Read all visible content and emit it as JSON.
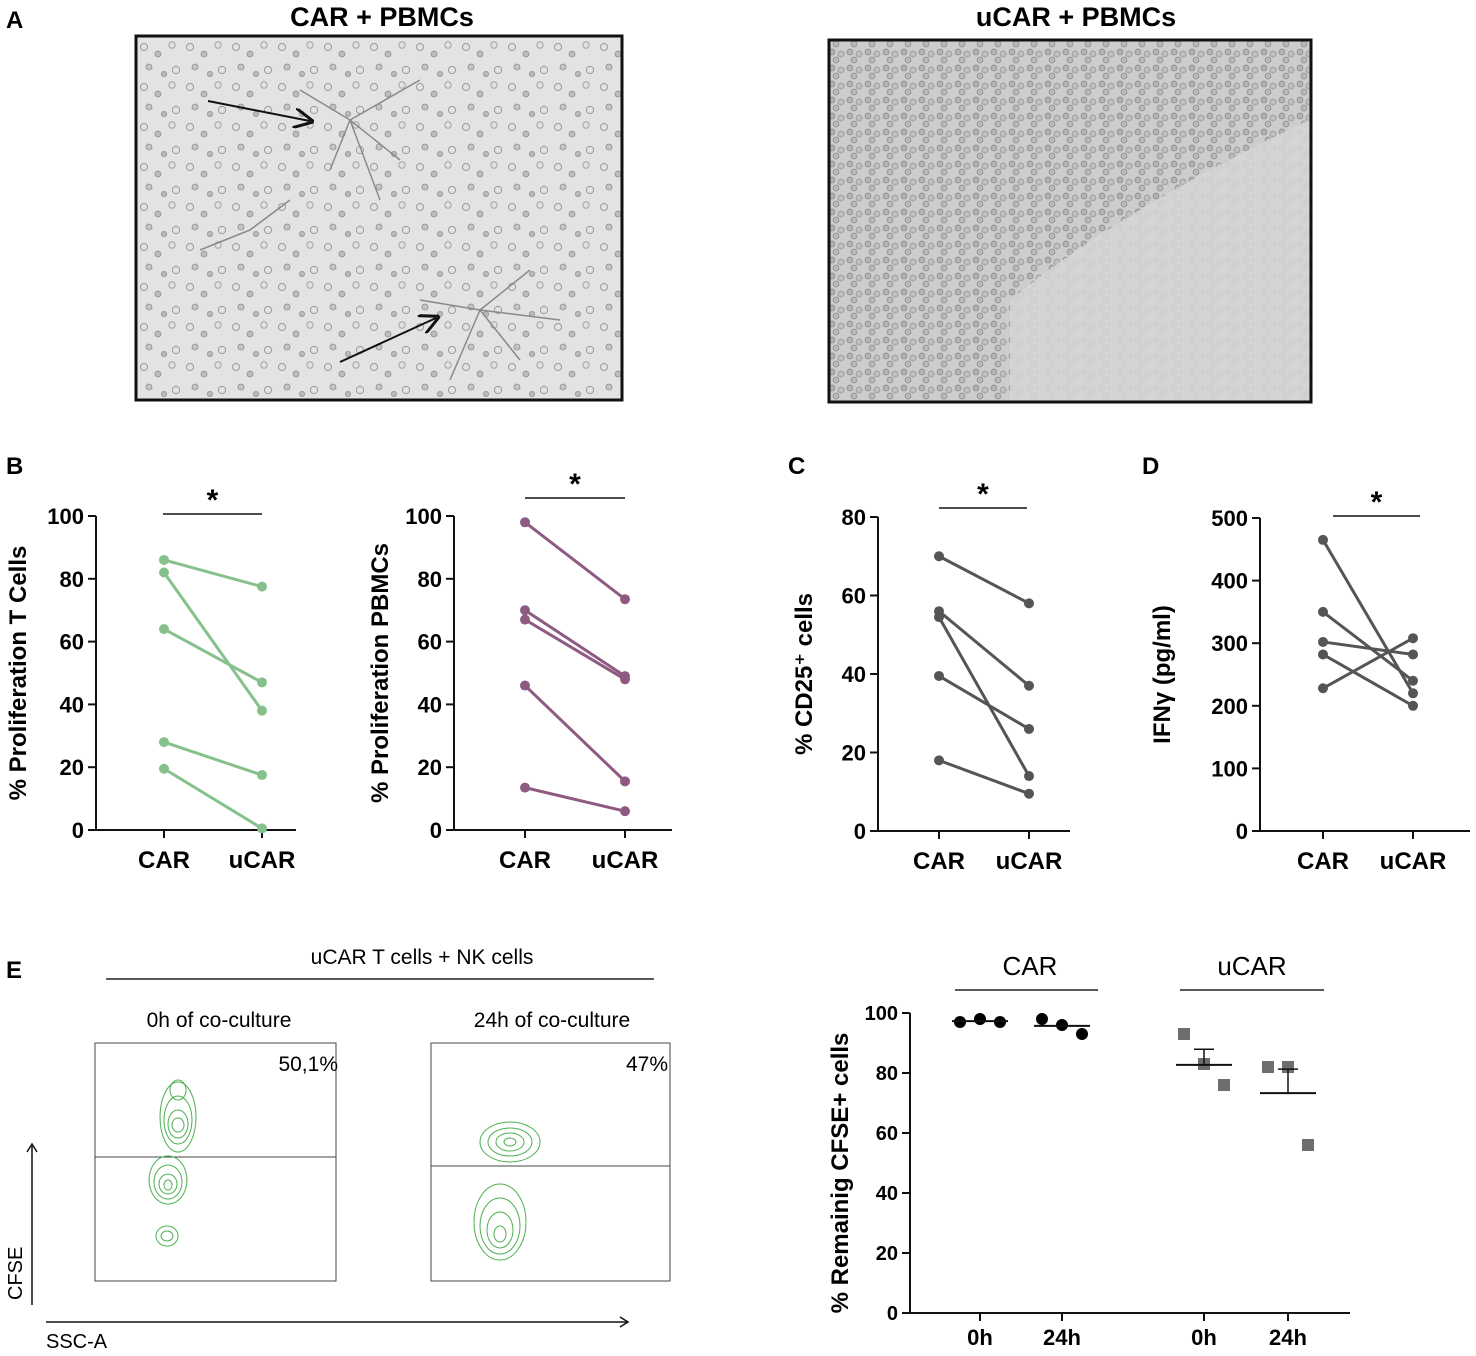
{
  "panel_letters": {
    "a": "A",
    "b": "B",
    "c": "C",
    "d": "D",
    "e": "E"
  },
  "panel_a": {
    "left_title": "CAR + PBMCs",
    "right_title": "uCAR + PBMCs"
  },
  "panel_e": {
    "header": "uCAR T cells + NK cells",
    "plot1_title": "0h of co-culture",
    "plot1_pct": "50,1%",
    "plot2_title": "24h of co-culture",
    "plot2_pct": "47%",
    "y_axis": "CFSE",
    "x_axis": "SSC-A",
    "group_car": "CAR",
    "group_ucar": "uCAR"
  },
  "colors": {
    "green": "#86c08c",
    "purple": "#8f5a82",
    "gray": "#555555",
    "contour": "#4caf50",
    "black": "#000000",
    "square": "#6e6e6e"
  },
  "chart_data": [
    {
      "id": "b1",
      "type": "line",
      "color": "green",
      "categories": [
        "CAR",
        "uCAR"
      ],
      "ylabel": "% Proliferation T Cells",
      "ylim": [
        0,
        100
      ],
      "yticks": [
        0,
        20,
        40,
        60,
        80,
        100
      ],
      "significance": "*",
      "series": [
        {
          "values": [
            86,
            77.5
          ]
        },
        {
          "values": [
            82,
            38
          ]
        },
        {
          "values": [
            64,
            47
          ]
        },
        {
          "values": [
            28,
            17.5
          ]
        },
        {
          "values": [
            19.5,
            0.5
          ]
        }
      ]
    },
    {
      "id": "b2",
      "type": "line",
      "color": "purple",
      "categories": [
        "CAR",
        "uCAR"
      ],
      "ylabel": "% Proliferation PBMCs",
      "ylim": [
        0,
        100
      ],
      "yticks": [
        0,
        20,
        40,
        60,
        80,
        100
      ],
      "significance": "*",
      "series": [
        {
          "values": [
            98,
            73.5
          ]
        },
        {
          "values": [
            70,
            49
          ]
        },
        {
          "values": [
            67,
            48
          ]
        },
        {
          "values": [
            46,
            15.5
          ]
        },
        {
          "values": [
            13.5,
            6
          ]
        }
      ]
    },
    {
      "id": "c",
      "type": "line",
      "color": "gray",
      "categories": [
        "CAR",
        "uCAR"
      ],
      "ylabel": "% CD25⁺ cells",
      "ylim": [
        0,
        80
      ],
      "yticks": [
        0,
        20,
        40,
        60,
        80
      ],
      "significance": "*",
      "series": [
        {
          "values": [
            70,
            58
          ]
        },
        {
          "values": [
            56,
            37
          ]
        },
        {
          "values": [
            54.5,
            14
          ]
        },
        {
          "values": [
            39.5,
            26
          ]
        },
        {
          "values": [
            18,
            9.5
          ]
        }
      ]
    },
    {
      "id": "d",
      "type": "line",
      "color": "gray",
      "categories": [
        "CAR",
        "uCAR"
      ],
      "ylabel": "IFNγ (pg/ml)",
      "ylim": [
        0,
        500
      ],
      "yticks": [
        0,
        100,
        200,
        300,
        400,
        500
      ],
      "significance": "*",
      "series": [
        {
          "values": [
            465,
            220
          ]
        },
        {
          "values": [
            350,
            240
          ]
        },
        {
          "values": [
            302,
            282
          ]
        },
        {
          "values": [
            282,
            200
          ]
        },
        {
          "values": [
            228,
            308
          ]
        }
      ]
    },
    {
      "id": "e",
      "type": "scatter",
      "categories": [
        "0h",
        "24h",
        "0h",
        "24h"
      ],
      "ylabel": "% Remainig CFSE+ cells",
      "ylim": [
        0,
        100
      ],
      "yticks": [
        0,
        20,
        40,
        60,
        80,
        100
      ],
      "groups": [
        {
          "values": [
            97,
            98,
            97
          ],
          "mean": 97.3,
          "err": 0
        },
        {
          "values": [
            98,
            96,
            93
          ],
          "mean": 95.7,
          "err": 0
        },
        {
          "values": [
            93,
            83,
            76
          ],
          "mean": 82.7,
          "err": 5.2
        },
        {
          "values": [
            82,
            82,
            56
          ],
          "mean": 73.3,
          "err": 8.0
        }
      ]
    }
  ]
}
